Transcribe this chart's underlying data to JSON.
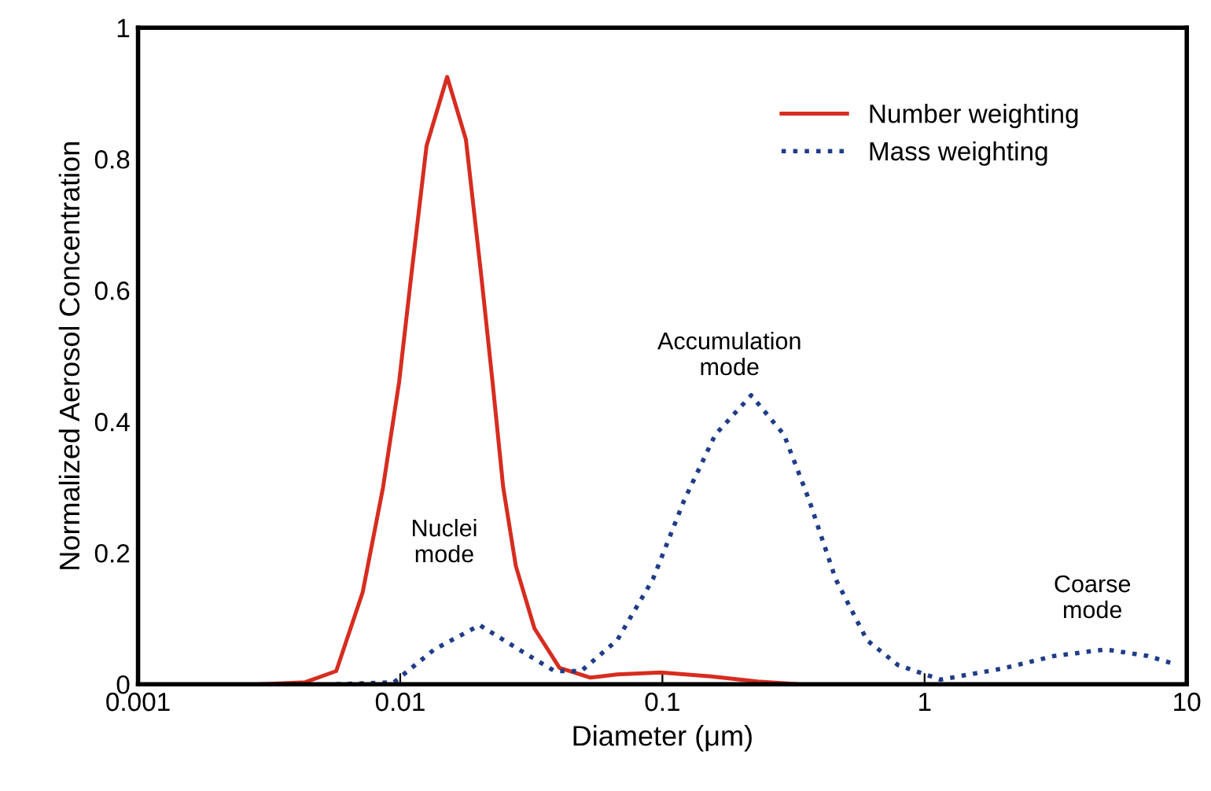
{
  "chart_data": {
    "type": "line",
    "xlabel": "Diameter (μm)",
    "ylabel": "Normalized Aerosol Concentration",
    "log": "x",
    "xlim": [
      0.001,
      10
    ],
    "xticks": [
      0.001,
      0.01,
      0.1,
      1,
      10
    ],
    "ylim": [
      0,
      1
    ],
    "yticks": [
      0,
      0.2,
      0.4,
      0.6,
      0.8,
      1
    ],
    "grid": false,
    "legend": "top right",
    "marker": "none",
    "series": [
      {
        "name": "Number weighting",
        "color": "#d62d20",
        "line_style": "solid",
        "x": [
          0.00295,
          0.00434,
          0.0057,
          0.00719,
          0.0086,
          0.0099,
          0.011,
          0.0126,
          0.0151,
          0.0178,
          0.0204,
          0.0225,
          0.0247,
          0.0276,
          0.0325,
          0.0405,
          0.0532,
          0.0672,
          0.0986,
          0.153,
          0.231,
          0.325
        ],
        "values": [
          0,
          0.003,
          0.02,
          0.14,
          0.3,
          0.46,
          0.62,
          0.82,
          0.925,
          0.83,
          0.62,
          0.46,
          0.3,
          0.18,
          0.085,
          0.025,
          0.01,
          0.015,
          0.018,
          0.012,
          0.004,
          0
        ]
      },
      {
        "name": "Mass weighting",
        "color": "#1f3c88",
        "line_style": "dotted",
        "x": [
          0.0057,
          0.00946,
          0.0135,
          0.0201,
          0.0283,
          0.0388,
          0.049,
          0.0672,
          0.092,
          0.121,
          0.159,
          0.218,
          0.291,
          0.363,
          0.458,
          0.603,
          0.793,
          1.15,
          1.99,
          3.12,
          4.9,
          7.1,
          8.96
        ],
        "values": [
          0,
          0.003,
          0.053,
          0.09,
          0.053,
          0.02,
          0.02,
          0.067,
          0.16,
          0.28,
          0.38,
          0.44,
          0.38,
          0.28,
          0.16,
          0.067,
          0.029,
          0.007,
          0.024,
          0.043,
          0.053,
          0.043,
          0.031
        ]
      }
    ],
    "annotations": [
      "Nuclei\nmode",
      "Accumulation\nmode",
      "Coarse\nmode"
    ]
  }
}
